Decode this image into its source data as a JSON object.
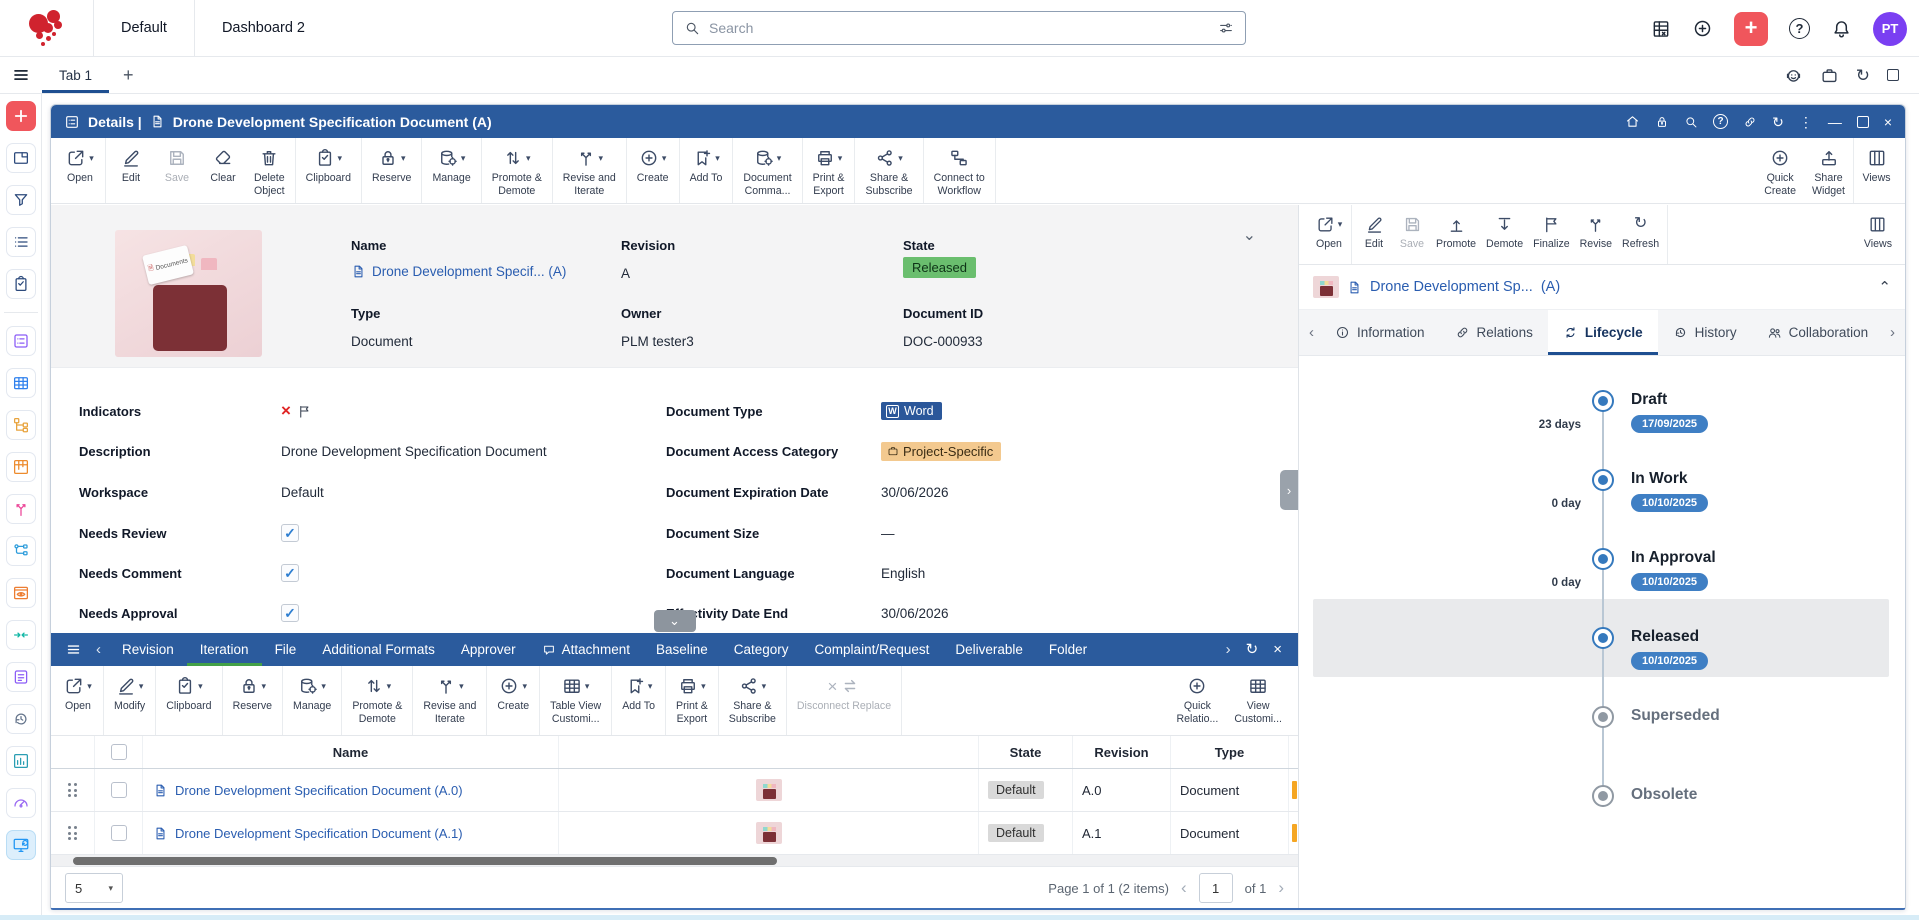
{
  "colors": {
    "header_blue": "#2b5b9d",
    "accent_blue": "#1e4f91",
    "link_blue": "#2a5db0",
    "green_badge_bg": "#6abe6e",
    "green_underline": "#43a047",
    "word_badge_bg": "#2b579a",
    "tan_badge_bg": "#f3c98f",
    "gray_badge_bg": "#d9d9d9",
    "date_pill_bg": "#3f7fc4",
    "logo_red": "#d0232e",
    "coral_tile": "#f0565c",
    "avatar_purple": "#7a3ff2",
    "lifecycle_blue": "#3579bd",
    "lifecycle_gray": "#9099a3"
  },
  "topbar": {
    "workspace": "Default",
    "dashboard": "Dashboard 2",
    "search_placeholder": "Search",
    "avatar_initials": "PT"
  },
  "tabbar": {
    "tab": "Tab 1"
  },
  "sidebar": {
    "items": [
      {
        "name": "quick-add",
        "icon": "plusg",
        "color": "#ffffff",
        "tile": "#f0565c"
      },
      {
        "name": "window",
        "icon": "window",
        "color": "#2c4a7c"
      },
      {
        "name": "filter",
        "icon": "filter",
        "color": "#2c4a7c"
      },
      {
        "name": "list",
        "icon": "listb",
        "color": "#2c4a7c"
      },
      {
        "name": "clipboard",
        "icon": "clipboard",
        "color": "#2c4a7c"
      },
      {
        "divider": true
      },
      {
        "name": "details-form",
        "icon": "form",
        "color": "#8b5cf6"
      },
      {
        "name": "table",
        "icon": "grid",
        "color": "#2f80ed"
      },
      {
        "name": "structure",
        "icon": "tree",
        "color": "#e8a33d"
      },
      {
        "name": "kanban",
        "icon": "kanban",
        "color": "#ed8b2d"
      },
      {
        "name": "versions",
        "icon": "branch",
        "color": "#ec4899"
      },
      {
        "name": "network",
        "icon": "nodes",
        "color": "#2d9cdb"
      },
      {
        "name": "preview",
        "icon": "eye",
        "color": "#ed7d31"
      },
      {
        "name": "merge",
        "icon": "converge",
        "color": "#14b8a6"
      },
      {
        "name": "notes",
        "icon": "notes",
        "color": "#8b5cf6"
      },
      {
        "name": "history",
        "icon": "historyc",
        "color": "#64748b"
      },
      {
        "name": "charts",
        "icon": "chart",
        "color": "#2b9eb3"
      },
      {
        "name": "dashboard",
        "icon": "gauge",
        "color": "#9b6bf2"
      },
      {
        "name": "monitor",
        "icon": "monitor",
        "color": "#2196f3",
        "active": true
      }
    ]
  },
  "window": {
    "header": {
      "section": "Details |",
      "title": "Drone Development Specification Document (A)"
    },
    "toolbar": {
      "groups": [
        [
          {
            "name": "open",
            "icon": "open",
            "label": "Open",
            "caret": true
          }
        ],
        [
          {
            "name": "edit",
            "icon": "pencil",
            "label": "Edit"
          },
          {
            "name": "save",
            "icon": "save",
            "label": "Save",
            "disabled": true
          },
          {
            "name": "clear",
            "icon": "eraser",
            "label": "Clear"
          },
          {
            "name": "delete-object",
            "icon": "trash",
            "label": "Delete\nObject"
          }
        ],
        [
          {
            "name": "clipboard",
            "icon": "clipboard",
            "label": "Clipboard",
            "caret": true
          }
        ],
        [
          {
            "name": "reserve",
            "icon": "lock",
            "label": "Reserve",
            "caret": true
          }
        ],
        [
          {
            "name": "manage",
            "icon": "db",
            "label": "Manage",
            "caret": true
          }
        ],
        [
          {
            "name": "promote-demote",
            "icon": "updown",
            "label": "Promote &\nDemote",
            "caret": true
          }
        ],
        [
          {
            "name": "revise-iterate",
            "icon": "branch",
            "label": "Revise and\nIterate",
            "caret": true
          }
        ],
        [
          {
            "name": "create",
            "icon": "pluscircle",
            "label": "Create",
            "caret": true
          }
        ],
        [
          {
            "name": "add-to",
            "icon": "bookmark",
            "label": "Add To",
            "caret": true
          }
        ],
        [
          {
            "name": "document-commands",
            "icon": "db",
            "label": "Document\nComma...",
            "caret": true
          }
        ],
        [
          {
            "name": "print-export",
            "icon": "printer",
            "label": "Print &\nExport",
            "caret": true
          }
        ],
        [
          {
            "name": "share-subscribe",
            "icon": "share",
            "label": "Share &\nSubscribe",
            "caret": true
          }
        ],
        [
          {
            "name": "connect-workflow",
            "icon": "workflow",
            "label": "Connect to\nWorkflow"
          }
        ]
      ],
      "right": [
        {
          "name": "quick-create",
          "icon": "pluscircle",
          "label": "Quick\nCreate"
        },
        {
          "name": "share-widget",
          "icon": "upload",
          "label": "Share\nWidget"
        },
        {
          "name": "views",
          "icon": "columns",
          "label": "Views",
          "sep": true
        }
      ]
    },
    "summary": {
      "name_label": "Name",
      "name_value": "Drone Development Specif... (A)",
      "revision_label": "Revision",
      "revision_value": "A",
      "state_label": "State",
      "state_value": "Released",
      "type_label": "Type",
      "type_value": "Document",
      "owner_label": "Owner",
      "owner_value": "PLM tester3",
      "docid_label": "Document ID",
      "docid_value": "DOC-000933",
      "thumb_caption": "Documents"
    },
    "form": {
      "left": [
        {
          "label": "Indicators",
          "type": "indicators"
        },
        {
          "label": "Description",
          "value": "Drone Development Specification Document"
        },
        {
          "label": "Workspace",
          "value": "Default"
        },
        {
          "label": "Needs Review",
          "type": "check",
          "checked": true
        },
        {
          "label": "Needs Comment",
          "type": "check",
          "checked": true
        },
        {
          "label": "Needs Approval",
          "type": "check",
          "checked": true
        }
      ],
      "right": [
        {
          "label": "Document Type",
          "type": "badge-word",
          "value": "Word"
        },
        {
          "label": "Document Access Category",
          "type": "badge-tan",
          "value": "Project-Specific"
        },
        {
          "label": "Document Expiration Date",
          "value": "30/06/2026"
        },
        {
          "label": "Document Size",
          "value": "—"
        },
        {
          "label": "Document Language",
          "value": "English"
        },
        {
          "label": "Effectivity Date End",
          "value": "30/06/2026"
        }
      ]
    }
  },
  "subpanel": {
    "tabs": [
      {
        "label": "Revision"
      },
      {
        "label": "Iteration",
        "active": true
      },
      {
        "label": "File"
      },
      {
        "label": "Additional Formats"
      },
      {
        "label": "Approver"
      },
      {
        "label": "Attachment",
        "icon": "bubble"
      },
      {
        "label": "Baseline"
      },
      {
        "label": "Category"
      },
      {
        "label": "Complaint/Request"
      },
      {
        "label": "Deliverable"
      },
      {
        "label": "Folder"
      }
    ],
    "toolbar": {
      "groups": [
        [
          {
            "name": "open",
            "icon": "open",
            "label": "Open",
            "caret": true
          }
        ],
        [
          {
            "name": "modify",
            "icon": "pencil",
            "label": "Modify",
            "caret": true
          }
        ],
        [
          {
            "name": "clipboard",
            "icon": "clipboard",
            "label": "Clipboard",
            "caret": true
          }
        ],
        [
          {
            "name": "reserve",
            "icon": "lock",
            "label": "Reserve",
            "caret": true
          }
        ],
        [
          {
            "name": "manage",
            "icon": "db",
            "label": "Manage",
            "caret": true
          }
        ],
        [
          {
            "name": "promote-demote",
            "icon": "updown",
            "label": "Promote &\nDemote",
            "caret": true
          }
        ],
        [
          {
            "name": "revise-iterate",
            "icon": "branch",
            "label": "Revise and\nIterate",
            "caret": true
          }
        ],
        [
          {
            "name": "create",
            "icon": "pluscircle",
            "label": "Create",
            "caret": true
          }
        ],
        [
          {
            "name": "table-view-customize",
            "icon": "grid",
            "label": "Table View\nCustomi...",
            "caret": true
          }
        ],
        [
          {
            "name": "add-to",
            "icon": "bookmark",
            "label": "Add To",
            "caret": true
          }
        ],
        [
          {
            "name": "print-export",
            "icon": "printer",
            "label": "Print &\nExport",
            "caret": true
          }
        ],
        [
          {
            "name": "share-subscribe",
            "icon": "share",
            "label": "Share &\nSubscribe",
            "caret": true
          }
        ],
        [
          {
            "name": "disconnect-replace",
            "icons": [
              "xmark",
              "swap"
            ],
            "label": "Disconnect Replace",
            "disabled": true
          }
        ]
      ],
      "right": [
        {
          "name": "quick-relationship",
          "icon": "pluscircle",
          "label": "Quick\nRelatio..."
        },
        {
          "name": "view-customize",
          "icon": "grid",
          "label": "View\nCustomi..."
        }
      ]
    },
    "table": {
      "columns": {
        "name": "Name",
        "preview": "",
        "state": "State",
        "revision": "Revision",
        "type": "Type"
      },
      "rows": [
        {
          "name": "Drone Development Specification Document (A.0)",
          "state": "Default",
          "revision": "A.0",
          "type": "Document"
        },
        {
          "name": "Drone Development Specification Document (A.1)",
          "state": "Default",
          "revision": "A.1",
          "type": "Document"
        }
      ]
    },
    "pagination": {
      "page_size": "5",
      "summary": "Page 1 of 1 (2 items)",
      "page_value": "1",
      "of": "of 1"
    }
  },
  "rightpanel": {
    "toolbar": {
      "groups": [
        [
          {
            "name": "open",
            "icon": "open",
            "label": "Open",
            "caret": true
          }
        ],
        [
          {
            "name": "edit",
            "icon": "pencil",
            "label": "Edit"
          },
          {
            "name": "save",
            "icon": "save",
            "label": "Save",
            "disabled": true
          },
          {
            "name": "promote",
            "icon": "promote",
            "label": "Promote"
          },
          {
            "name": "demote",
            "icon": "demote",
            "label": "Demote"
          },
          {
            "name": "finalize",
            "icon": "flagb",
            "label": "Finalize"
          },
          {
            "name": "revise",
            "icon": "branch",
            "label": "Revise"
          },
          {
            "name": "refresh",
            "icon": "refresh",
            "label": "Refresh"
          }
        ]
      ],
      "views_label": "Views"
    },
    "doc_title": "Drone Development Sp...",
    "doc_suffix": "(A)",
    "tabs": [
      {
        "name": "information",
        "icon": "infoc",
        "label": "Information"
      },
      {
        "name": "relations",
        "icon": "link",
        "label": "Relations"
      },
      {
        "name": "lifecycle",
        "icon": "lifecycle",
        "label": "Lifecycle",
        "active": true
      },
      {
        "name": "history",
        "icon": "historyc",
        "label": "History"
      },
      {
        "name": "collaboration",
        "icon": "people",
        "label": "Collaboration"
      }
    ],
    "lifecycle": [
      {
        "state": "Draft",
        "date": "17/09/2025",
        "duration": "23 days",
        "status": "done"
      },
      {
        "state": "In Work",
        "date": "10/10/2025",
        "duration": "0 day",
        "status": "done"
      },
      {
        "state": "In Approval",
        "date": "10/10/2025",
        "duration": "0 day",
        "status": "done"
      },
      {
        "state": "Released",
        "date": "10/10/2025",
        "status": "current"
      },
      {
        "state": "Superseded",
        "status": "pending"
      },
      {
        "state": "Obsolete",
        "status": "pending"
      }
    ]
  }
}
